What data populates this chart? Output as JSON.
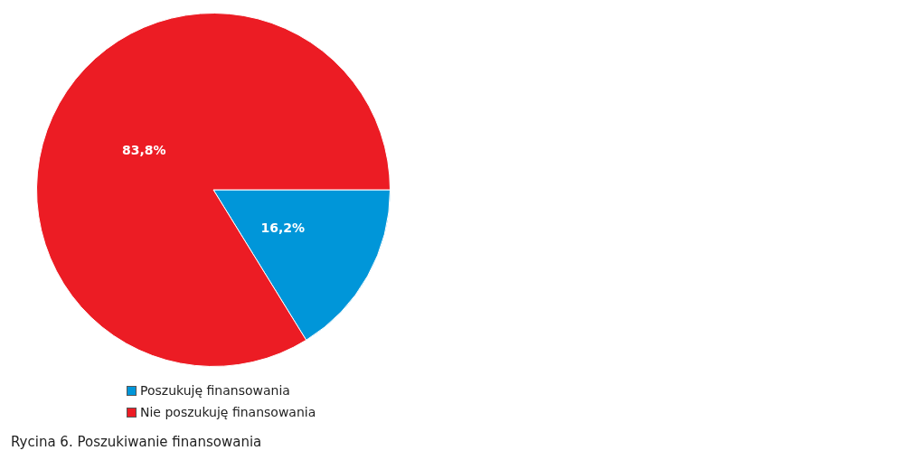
{
  "chart_data": {
    "type": "pie",
    "title": "Rycina 6. Poszukiwanie finansowania",
    "categories": [
      "Poszukuję finansowania",
      "Nie poszukuję finansowania"
    ],
    "values": [
      16.2,
      83.8
    ],
    "colors": [
      "#0096d9",
      "#ec1c24"
    ],
    "value_labels": [
      "16,2%",
      "83,8%"
    ],
    "legend": "bottom left"
  }
}
